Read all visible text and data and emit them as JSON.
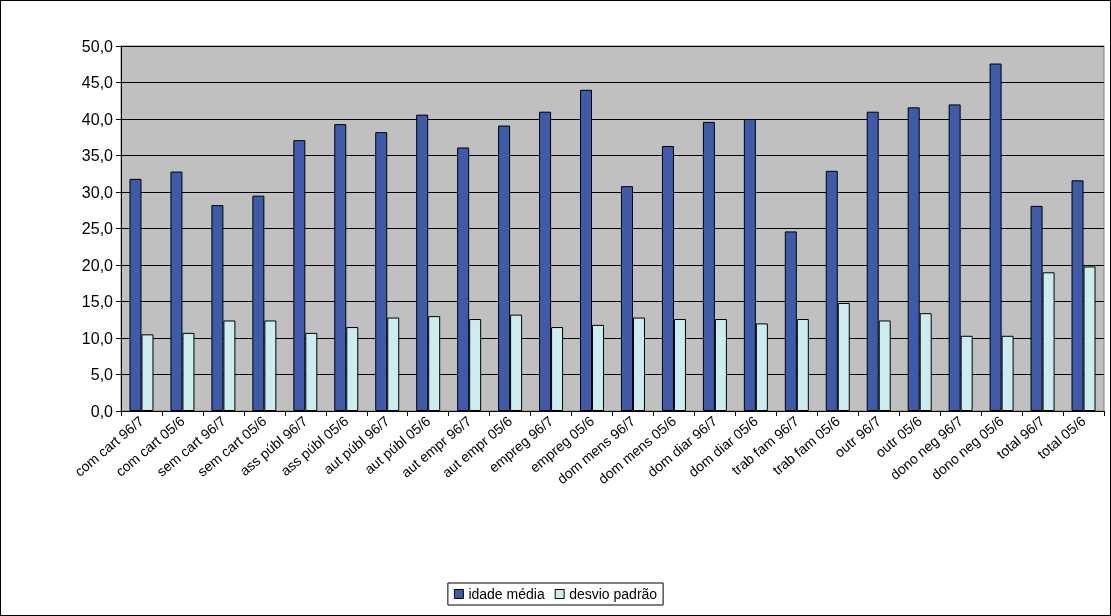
{
  "chart_data": {
    "type": "bar",
    "categories": [
      "com cart 96/7",
      "com cart 05/6",
      "sem cart 96/7",
      "sem cart 05/6",
      "ass públ 96/7",
      "ass públ 05/6",
      "aut públ 96/7",
      "aut públ 05/6",
      "aut empr 96/7",
      "aut empr 05/6",
      "empreg 96/7",
      "empreg 05/6",
      "dom mens 96/7",
      "dom mens 05/6",
      "dom diar 96/7",
      "dom diar 05/6",
      "trab fam 96/7",
      "trab fam 05/6",
      "outr 96/7",
      "outr 05/6",
      "dono neg 96/7",
      "dono neg 05/6",
      "total 96/7",
      "total 05/6"
    ],
    "series": [
      {
        "name": "idade média",
        "color": "#3f5aa8",
        "values": [
          31.8,
          32.8,
          28.2,
          29.5,
          37.1,
          39.3,
          38.2,
          40.6,
          36.1,
          39.1,
          41.0,
          44.0,
          30.8,
          36.3,
          39.6,
          40.0,
          24.6,
          32.9,
          41.0,
          41.6,
          42.0,
          47.6,
          28.1,
          31.6
        ]
      },
      {
        "name": "desvio padrão",
        "color": "#ccecf0",
        "values": [
          10.5,
          10.7,
          12.4,
          12.4,
          10.7,
          11.5,
          12.8,
          13.0,
          12.6,
          13.2,
          11.5,
          11.8,
          12.8,
          12.6,
          12.6,
          12.0,
          12.6,
          14.8,
          12.4,
          13.4,
          10.3,
          10.3,
          19.0,
          19.8
        ]
      }
    ],
    "ylim": [
      0,
      50
    ],
    "yticks": [
      {
        "value": 0,
        "label": "0,0"
      },
      {
        "value": 5,
        "label": "5,0"
      },
      {
        "value": 10,
        "label": "10,0"
      },
      {
        "value": 15,
        "label": "15,0"
      },
      {
        "value": 20,
        "label": "20,0"
      },
      {
        "value": 25,
        "label": "25,0"
      },
      {
        "value": 30,
        "label": "30,0"
      },
      {
        "value": 35,
        "label": "35,0"
      },
      {
        "value": 40,
        "label": "40,0"
      },
      {
        "value": 45,
        "label": "45,0"
      },
      {
        "value": 50,
        "label": "50,0"
      }
    ],
    "grid": "y",
    "legend": "bottom"
  }
}
